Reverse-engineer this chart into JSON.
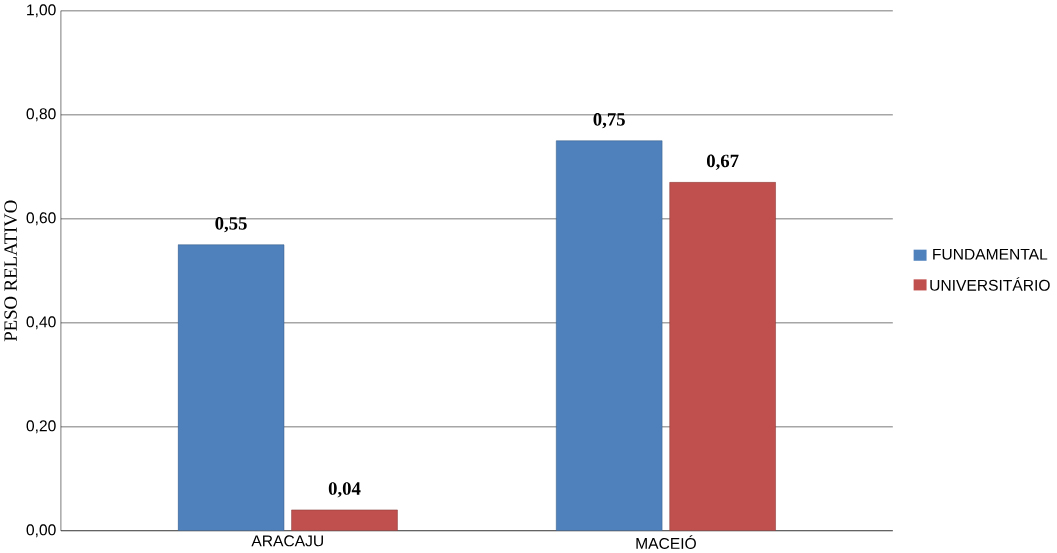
{
  "chart_data": {
    "type": "bar",
    "ylabel": "PESO RELATIVO",
    "categories": [
      "ARACAJU",
      "MACEIÓ"
    ],
    "series": [
      {
        "name": "FUNDAMENTAL",
        "color": "#4f81bd",
        "values": [
          0.55,
          0.75
        ],
        "value_labels": [
          "0,55",
          "0,75"
        ]
      },
      {
        "name": "UNIVERSITÁRIO",
        "color": "#c0504d",
        "values": [
          0.04,
          0.67
        ],
        "value_labels": [
          "0,04",
          "0,67"
        ]
      }
    ],
    "ylim": [
      0,
      1
    ],
    "yticks": [
      {
        "value": 0,
        "label": "0,00"
      },
      {
        "value": 0.2,
        "label": "0,20"
      },
      {
        "value": 0.4,
        "label": "0,40"
      },
      {
        "value": 0.6,
        "label": "0,60"
      },
      {
        "value": 0.8,
        "label": "0,80"
      },
      {
        "value": 1,
        "label": "1,00"
      }
    ],
    "grid": "y",
    "legend": "right"
  }
}
